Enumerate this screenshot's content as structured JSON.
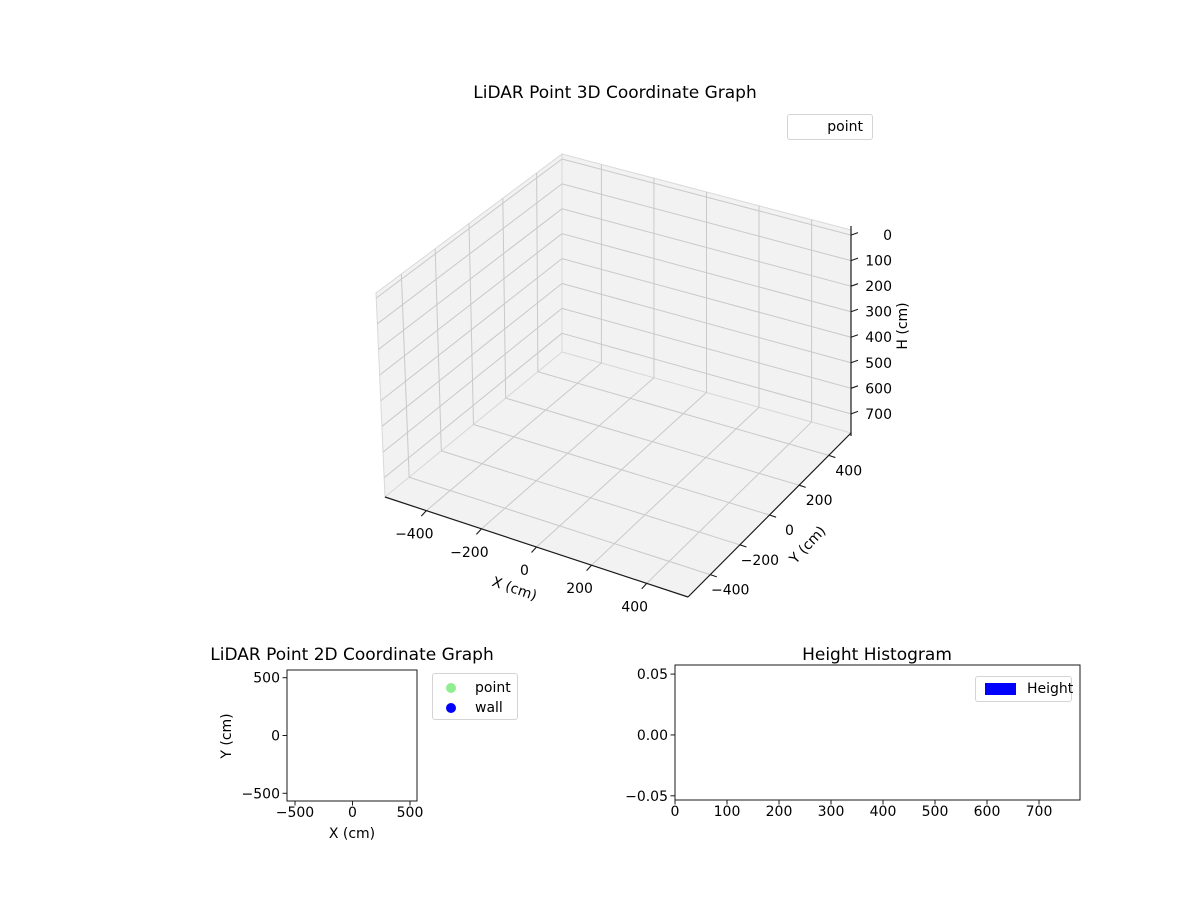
{
  "figure": {
    "background": "#ffffff"
  },
  "colors": {
    "pane_fill": "#f2f2f2",
    "pane_edge": "#d9d9d9",
    "grid_3d": "#c9c9c9",
    "axis_line": "#1a1a1a",
    "text": "#000000",
    "legend_border": "#d4d4d4",
    "point_marker": "#90ee90",
    "wall_marker": "#0000ff",
    "height_bar": "#0000ff"
  },
  "chart_data": [
    {
      "id": "lidar3d",
      "type": "scatter3d",
      "title": "LiDAR Point 3D Coordinate Graph",
      "xlabel": "X (cm)",
      "ylabel": "Y (cm)",
      "zlabel": "H (cm)",
      "xtick_values": [
        -400,
        -200,
        0,
        200,
        400
      ],
      "xtick_labels": [
        "−400",
        "−200",
        "0",
        "200",
        "400"
      ],
      "ytick_values": [
        -400,
        -200,
        0,
        200,
        400
      ],
      "ytick_labels": [
        "−400",
        "−200",
        "0",
        "200",
        "400"
      ],
      "ztick_values": [
        0,
        100,
        200,
        300,
        400,
        500,
        600,
        700
      ],
      "ztick_labels": [
        "0",
        "100",
        "200",
        "300",
        "400",
        "500",
        "600",
        "700"
      ],
      "zaxis_inverted": true,
      "grid": true,
      "legend": {
        "position": "upper right",
        "entries": [
          {
            "label": "point",
            "marker": "none"
          }
        ]
      },
      "series": [
        {
          "name": "point",
          "points": []
        }
      ]
    },
    {
      "id": "lidar2d",
      "type": "scatter",
      "title": "LiDAR Point 2D Coordinate Graph",
      "xlabel": "X (cm)",
      "ylabel": "Y (cm)",
      "xtick_values": [
        -500,
        0,
        500
      ],
      "xtick_labels": [
        "−500",
        "0",
        "500"
      ],
      "ytick_values": [
        -500,
        0,
        500
      ],
      "ytick_labels": [
        "−500",
        "0",
        "500"
      ],
      "grid": false,
      "legend": {
        "position": "outside upper right",
        "entries": [
          {
            "label": "point",
            "marker": "circle",
            "color": "#90ee90"
          },
          {
            "label": "wall",
            "marker": "circle",
            "color": "#0000ff"
          }
        ]
      },
      "series": [
        {
          "name": "point",
          "color": "#90ee90",
          "points": []
        },
        {
          "name": "wall",
          "color": "#0000ff",
          "points": []
        }
      ]
    },
    {
      "id": "height_histogram",
      "type": "bar",
      "title": "Height Histogram",
      "xlabel": "",
      "ylabel": "",
      "xtick_values": [
        0,
        100,
        200,
        300,
        400,
        500,
        600,
        700
      ],
      "xtick_labels": [
        "0",
        "100",
        "200",
        "300",
        "400",
        "500",
        "600",
        "700"
      ],
      "ytick_values": [
        -0.05,
        0,
        0.05
      ],
      "ytick_labels": [
        "−0.05",
        "0.00",
        "0.05"
      ],
      "grid": false,
      "legend": {
        "position": "upper right",
        "entries": [
          {
            "label": "Height",
            "marker": "rect",
            "color": "#0000ff"
          }
        ]
      },
      "values": []
    }
  ]
}
